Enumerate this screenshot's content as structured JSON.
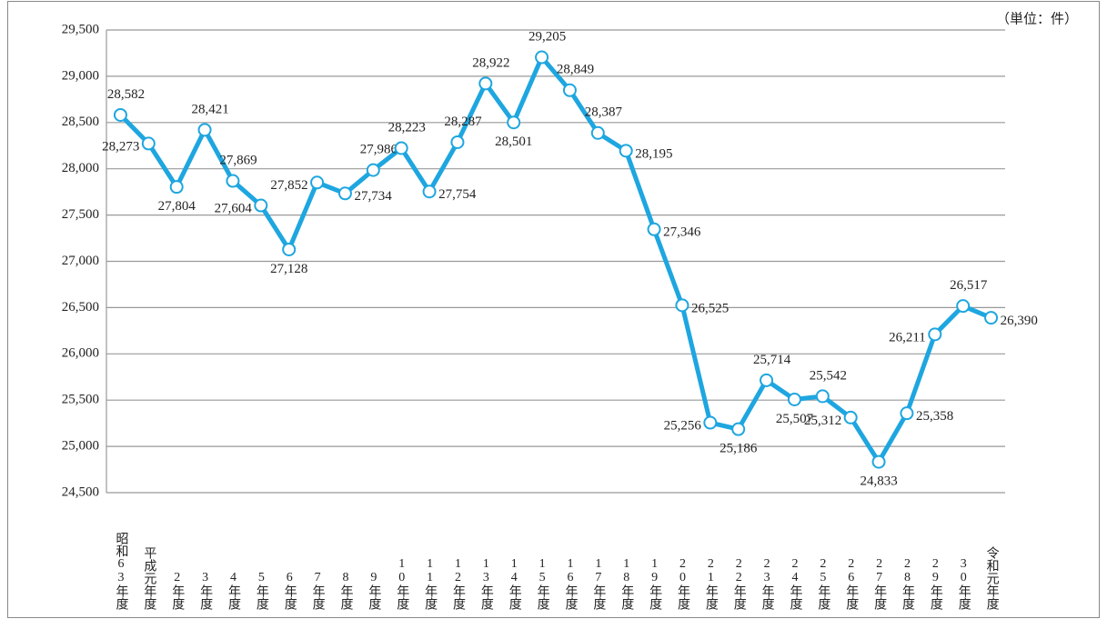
{
  "chart_data": {
    "type": "line",
    "unit_label": "（単位：件）",
    "categories": [
      "昭和63年度",
      "平成元年度",
      "2年度",
      "3年度",
      "4年度",
      "5年度",
      "6年度",
      "7年度",
      "8年度",
      "9年度",
      "10年度",
      "11年度",
      "12年度",
      "13年度",
      "14年度",
      "15年度",
      "16年度",
      "17年度",
      "18年度",
      "19年度",
      "20年度",
      "21年度",
      "22年度",
      "23年度",
      "24年度",
      "25年度",
      "26年度",
      "27年度",
      "28年度",
      "29年度",
      "30年度",
      "令和元年度"
    ],
    "series": [
      {
        "color": "#1ea6e0",
        "values": [
          28582,
          28273,
          27804,
          28421,
          27869,
          27604,
          27128,
          27852,
          27734,
          27986,
          28223,
          27754,
          28287,
          28922,
          28501,
          29205,
          28849,
          28387,
          28195,
          27346,
          26525,
          25256,
          25186,
          25714,
          25507,
          25542,
          25312,
          24833,
          25358,
          26211,
          26517,
          26390
        ],
        "value_labels": [
          "28,582",
          "28,273",
          "27,804",
          "28,421",
          "27,869",
          "27,604",
          "27,128",
          "27,852",
          "27,734",
          "27,986",
          "28,223",
          "27,754",
          "28,287",
          "28,922",
          "28,501",
          "29,205",
          "28,849",
          "28,387",
          "28,195",
          "27,346",
          "26,525",
          "25,256",
          "25,186",
          "25,714",
          "25,507",
          "25,542",
          "25,312",
          "24,833",
          "25,358",
          "26,211",
          "26,517",
          "26,390"
        ]
      }
    ],
    "ylim": [
      24500,
      29500
    ],
    "yticks": [
      {
        "value": 24500,
        "label": "24,500"
      },
      {
        "value": 25000,
        "label": "25,000"
      },
      {
        "value": 25500,
        "label": "25,500"
      },
      {
        "value": 26000,
        "label": "26,000"
      },
      {
        "value": 26500,
        "label": "26,500"
      },
      {
        "value": 27000,
        "label": "27,000"
      },
      {
        "value": 27500,
        "label": "27,500"
      },
      {
        "value": 28000,
        "label": "28,000"
      },
      {
        "value": 28500,
        "label": "28,500"
      },
      {
        "value": 29000,
        "label": "29,000"
      },
      {
        "value": 29500,
        "label": "29,500"
      }
    ],
    "grid": true
  }
}
